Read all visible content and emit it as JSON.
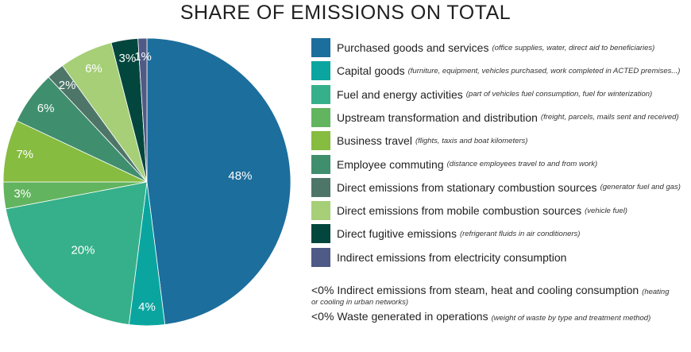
{
  "chart_data": {
    "type": "pie",
    "title": "SHARE OF EMISSIONS ON TOTAL",
    "slices": [
      {
        "label": "Purchased goods and services",
        "note": "(office supplies, water, direct aid to beneficiaries)",
        "value": 48,
        "display": "48%",
        "color": "#1c6e9c"
      },
      {
        "label": "Capital goods",
        "note": "(furniture, equipment, vehicles purchased, work completed in ACTED premises...)",
        "value": 4,
        "display": "4%",
        "color": "#0ba5a0"
      },
      {
        "label": "Fuel and energy activities",
        "note": "(part of vehicles fuel consumption, fuel for winterization)",
        "value": 20,
        "display": "20%",
        "color": "#36b08a"
      },
      {
        "label": "Upstream transformation and distribution",
        "note": "(freight, parcels, mails sent and received)",
        "value": 3,
        "display": "3%",
        "color": "#62b45e"
      },
      {
        "label": "Business travel",
        "note": "(flights, taxis and boat kilometers)",
        "value": 7,
        "display": "7%",
        "color": "#86bc40"
      },
      {
        "label": "Employee commuting",
        "note": "(distance employees travel to and from work)",
        "value": 6,
        "display": "6%",
        "color": "#3f8f6e"
      },
      {
        "label": "Direct emissions from stationary combustion sources",
        "note": "(generator fuel and gas)",
        "value": 2,
        "display": "2%",
        "color": "#4e7668"
      },
      {
        "label": "Direct emissions from mobile combustion sources",
        "note": "(vehicle fuel)",
        "value": 6,
        "display": "6%",
        "color": "#a6cf78"
      },
      {
        "label": "Direct fugitive emissions",
        "note": "(refrigerant fluids in air conditioners)",
        "value": 3,
        "display": "3%",
        "color": "#03463d"
      },
      {
        "label": "Indirect emissions from electricity consumption",
        "note": "",
        "value": 1,
        "display": "1%",
        "color": "#4f5a86"
      }
    ],
    "extra_entries": [
      {
        "prefix": "<0%",
        "label": "Indirect emissions from steam, heat and cooling consumption",
        "note": "(heating or cooling in urban networks)"
      },
      {
        "prefix": "<0%",
        "label": "Waste generated in operations",
        "note": "(weight of waste by type and treatment method)"
      }
    ],
    "legend_position": "right"
  }
}
